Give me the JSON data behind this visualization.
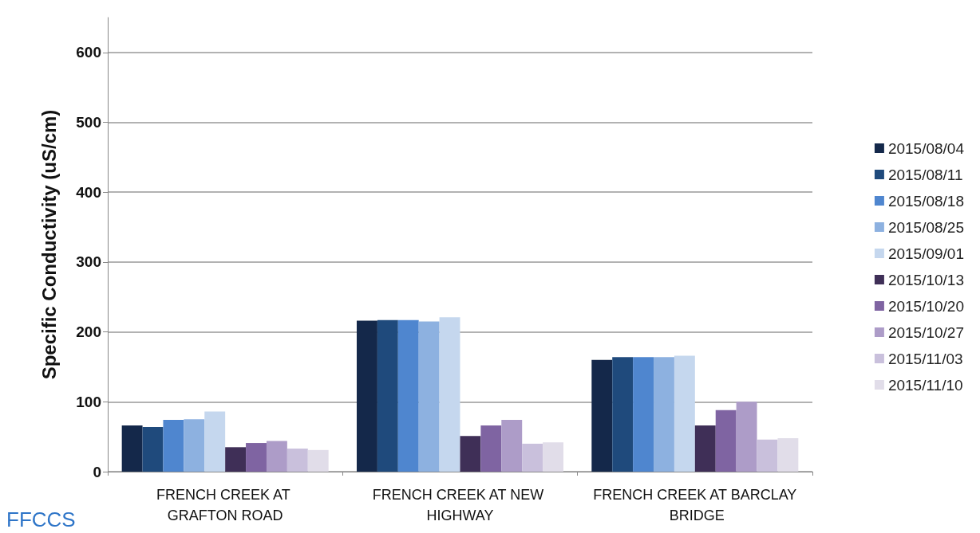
{
  "chart_data": {
    "type": "bar",
    "ylabel": "Specific Conductivity (uS/cm)",
    "categories": [
      "FRENCH CREEK AT GRAFTON ROAD",
      "FRENCH CREEK AT NEW HIGHWAY",
      "FRENCH CREEK AT BARCLAY BRIDGE"
    ],
    "series": [
      {
        "name": "2015/08/04",
        "color": "#14284a",
        "values": [
          66,
          216,
          160
        ]
      },
      {
        "name": "2015/08/11",
        "color": "#1f4a7c",
        "values": [
          64,
          217,
          164
        ]
      },
      {
        "name": "2015/08/18",
        "color": "#4f86cf",
        "values": [
          74,
          217,
          164
        ]
      },
      {
        "name": "2015/08/25",
        "color": "#8db1e0",
        "values": [
          75,
          215,
          164
        ]
      },
      {
        "name": "2015/09/01",
        "color": "#c5d7ee",
        "values": [
          86,
          221,
          166
        ]
      },
      {
        "name": "2015/10/13",
        "color": "#3f2f57",
        "values": [
          35,
          51,
          66
        ]
      },
      {
        "name": "2015/10/20",
        "color": "#7f64a2",
        "values": [
          41,
          66,
          88
        ]
      },
      {
        "name": "2015/10/27",
        "color": "#ad9cc8",
        "values": [
          44,
          74,
          100
        ]
      },
      {
        "name": "2015/11/03",
        "color": "#c9c0dc",
        "values": [
          33,
          40,
          46
        ]
      },
      {
        "name": "2015/11/10",
        "color": "#e1dde9",
        "values": [
          31,
          42,
          48
        ]
      }
    ],
    "ylim": [
      0,
      650
    ],
    "yticks": [
      0,
      100,
      200,
      300,
      400,
      500,
      600
    ],
    "grid": "y",
    "legend": "right",
    "annotations": [
      "FFCCS"
    ]
  }
}
